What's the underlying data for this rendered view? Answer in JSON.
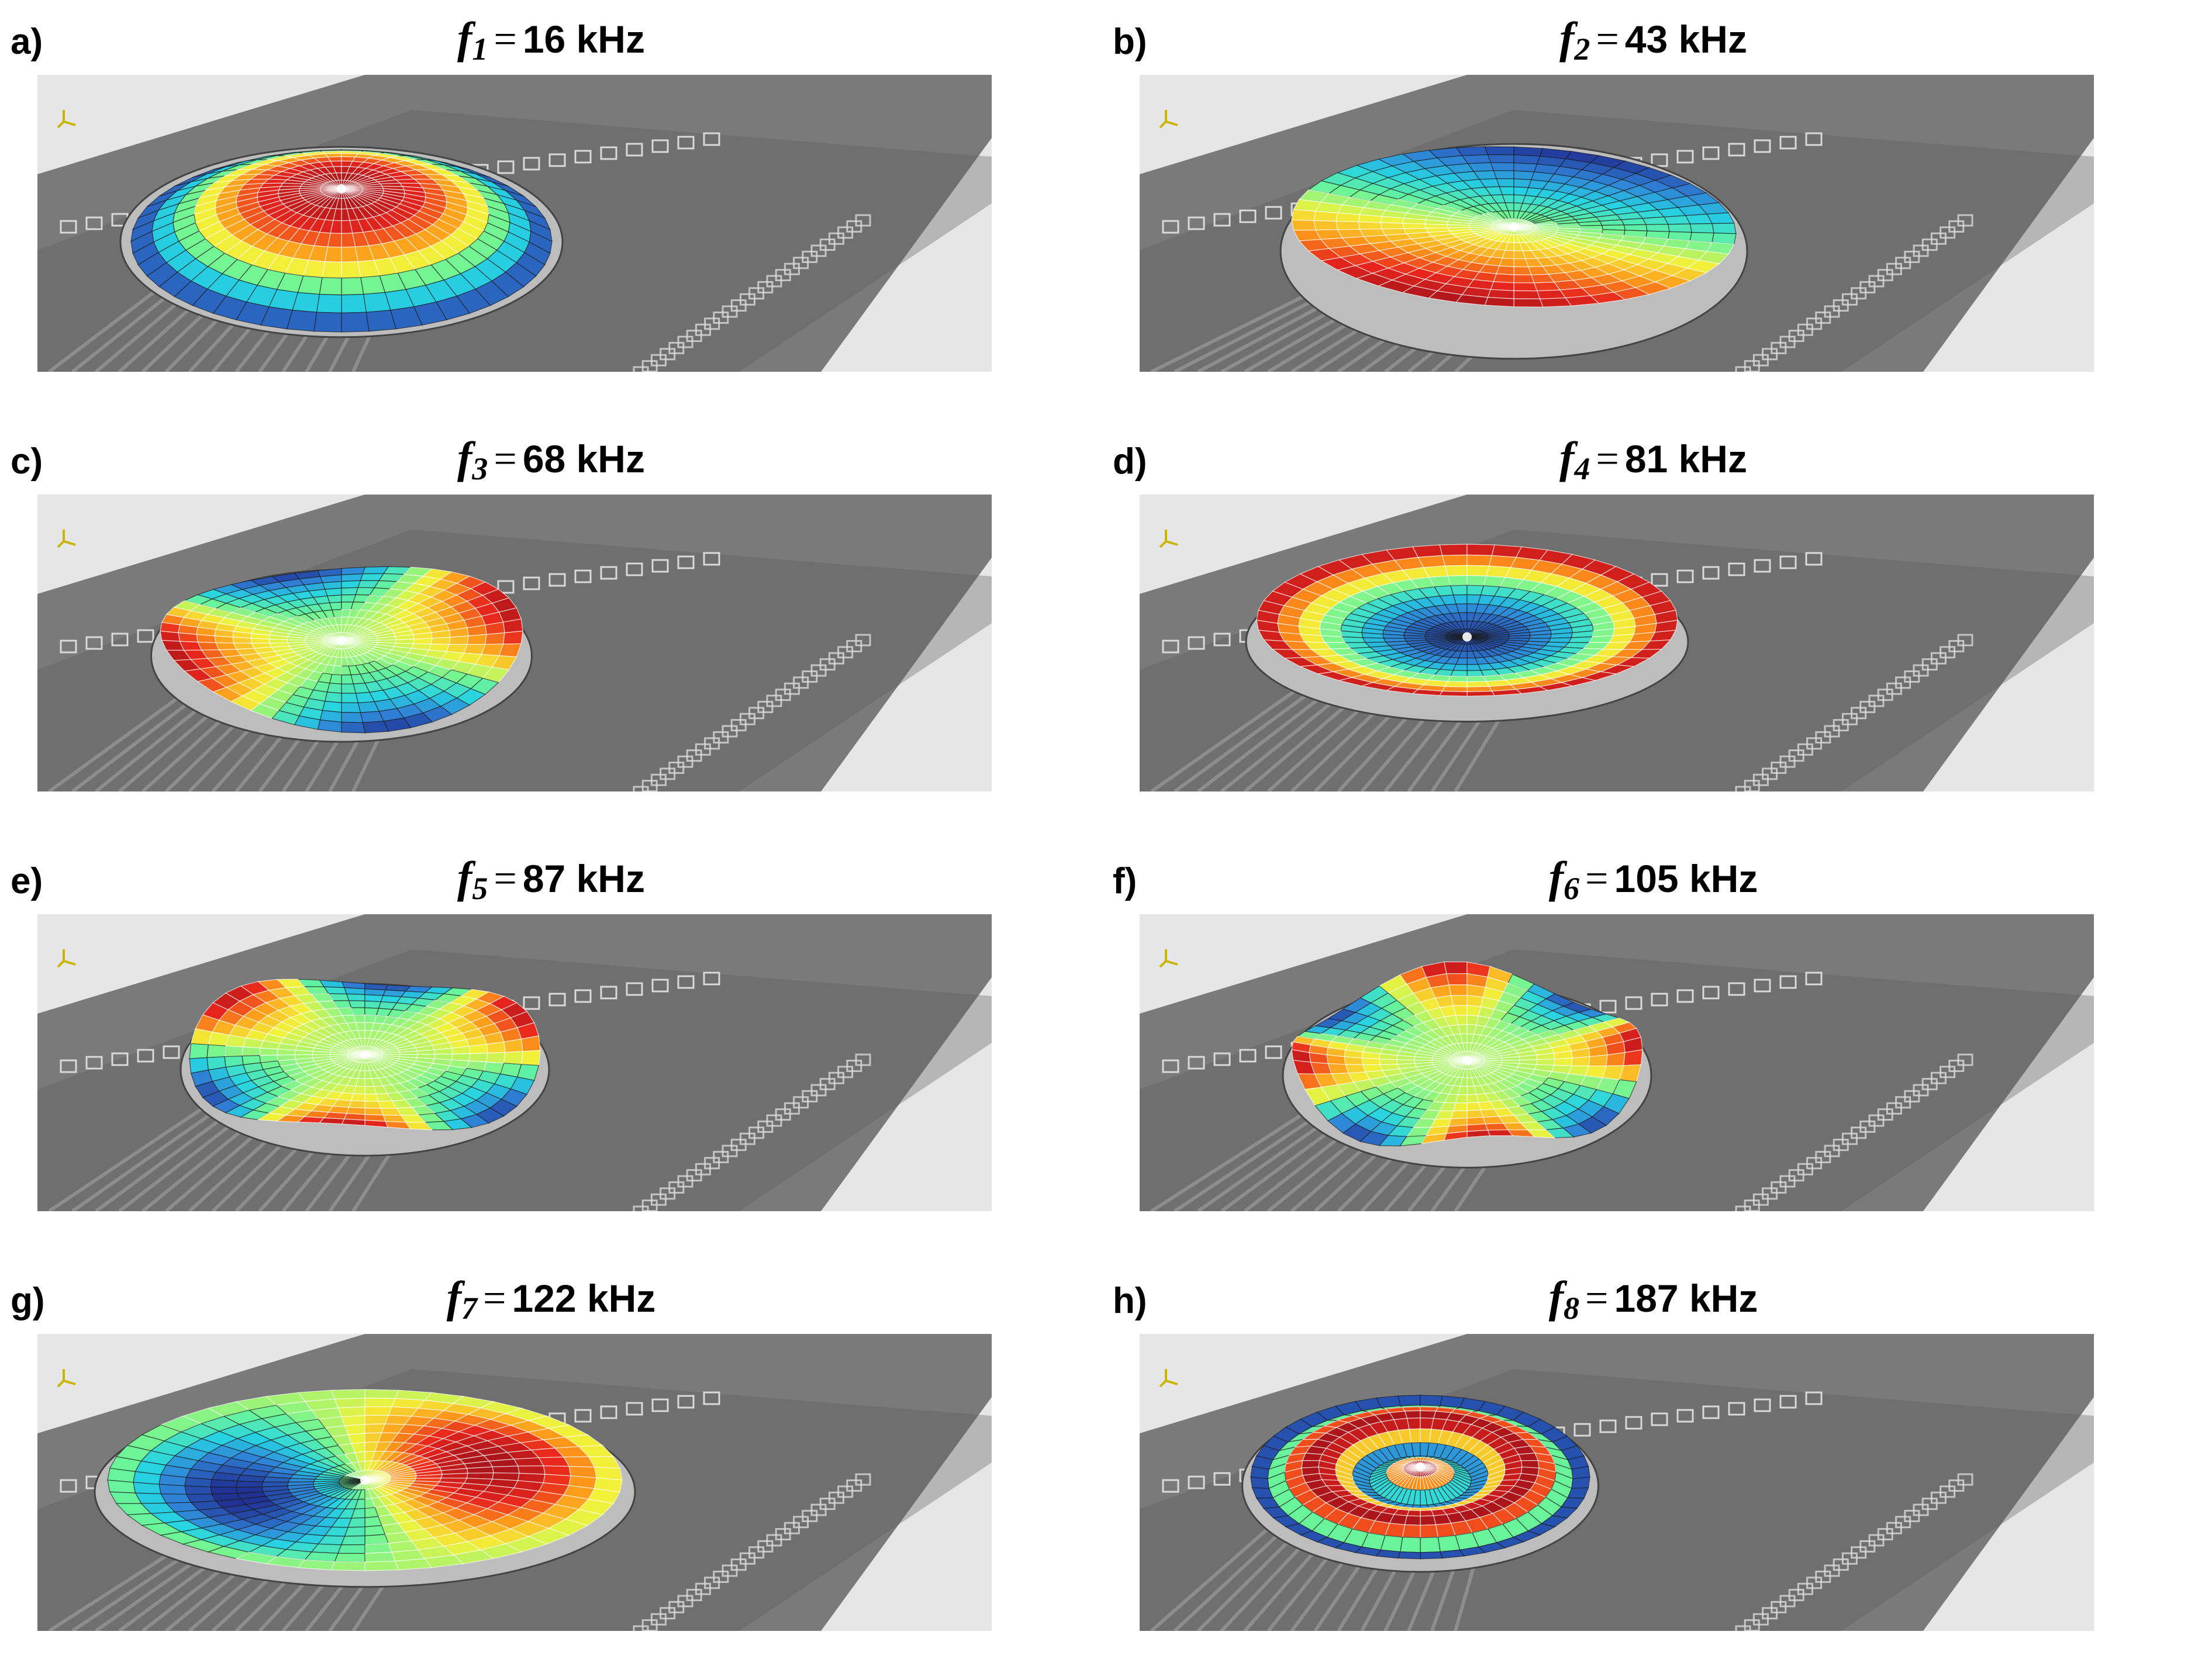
{
  "panels": [
    {
      "letter": "a)",
      "symbol": "f",
      "index": "1",
      "equals": "=",
      "value": "16 kHz",
      "mode": "m01"
    },
    {
      "letter": "b)",
      "symbol": "f",
      "index": "2",
      "equals": "=",
      "value": "43 kHz",
      "mode": "m11"
    },
    {
      "letter": "c)",
      "symbol": "f",
      "index": "3",
      "equals": "=",
      "value": "68 kHz",
      "mode": "m21"
    },
    {
      "letter": "d)",
      "symbol": "f",
      "index": "4",
      "equals": "=",
      "value": "81 kHz",
      "mode": "m02"
    },
    {
      "letter": "e)",
      "symbol": "f",
      "index": "5",
      "equals": "=",
      "value": "87 kHz",
      "mode": "m31"
    },
    {
      "letter": "f)",
      "symbol": "f",
      "index": "6",
      "equals": "=",
      "value": "105 kHz",
      "mode": "m41"
    },
    {
      "letter": "g)",
      "symbol": "f",
      "index": "7",
      "equals": "=",
      "value": "122 kHz",
      "mode": "m12"
    },
    {
      "letter": "h)",
      "symbol": "f",
      "index": "8",
      "equals": "=",
      "value": "187 kHz",
      "mode": "m03"
    }
  ],
  "colors": {
    "background": "#ffffff",
    "substrate": "#7a7a7a",
    "substrate_dark": "#5c5c5c",
    "pad_outline": "#d9d9d9",
    "colormap": [
      "#1f2d8f",
      "#2f7fd6",
      "#27d3e3",
      "#6af59a",
      "#f2f23a",
      "#ff9a1a",
      "#e8251d",
      "#a8141a"
    ]
  }
}
